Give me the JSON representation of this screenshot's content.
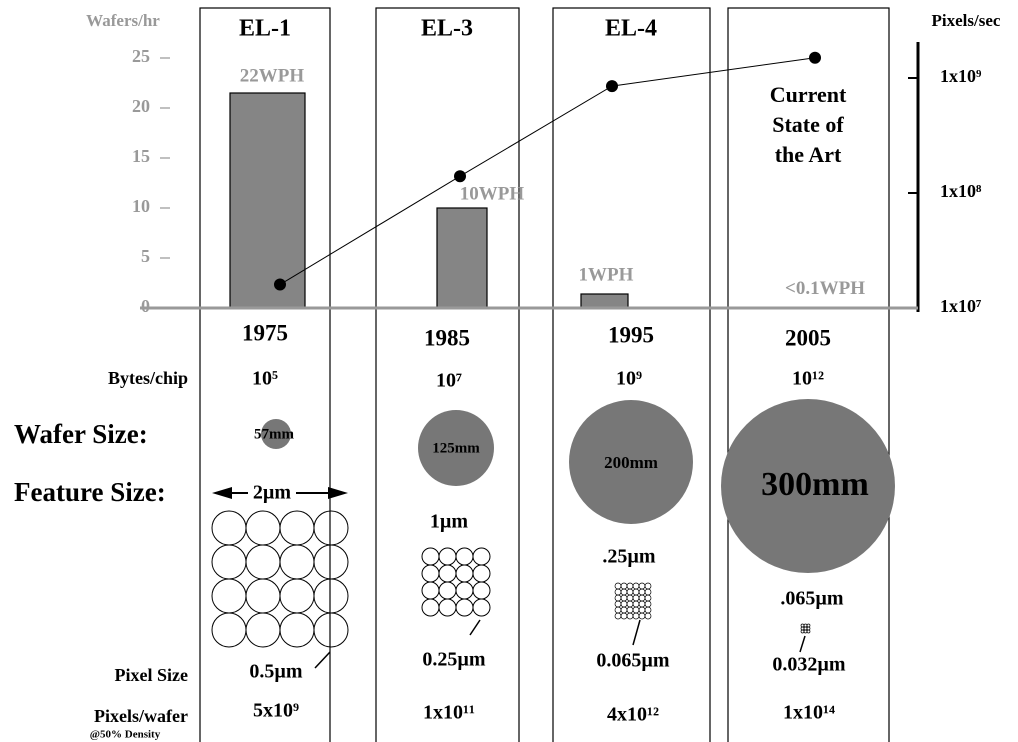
{
  "chart_data": {
    "type": "bar",
    "column_titles": [
      "EL-1",
      "EL-3",
      "EL-4",
      null
    ],
    "annotation_lines": [
      "Current",
      "State of",
      "the Art"
    ],
    "categories": [
      "1975",
      "1985",
      "1995",
      "2005"
    ],
    "ylabel": "Wafers/hr",
    "y2label": "Pixels/sec",
    "ylim": [
      0,
      25
    ],
    "yticks": [
      0,
      5,
      10,
      15,
      20,
      25
    ],
    "y2lim": [
      10000000,
      2000000000
    ],
    "y2scale": "log",
    "y2ticks": [
      {
        "value": 10000000,
        "label": "1x10⁷"
      },
      {
        "value": 100000000,
        "label": "1x10⁸"
      },
      {
        "value": 1000000000,
        "label": "1x10⁹"
      }
    ],
    "series": [
      {
        "type": "bar",
        "color": "#858585",
        "values": [
          21.5,
          10,
          1.4,
          0.05
        ],
        "value_labels": [
          "22WPH",
          "10WPH",
          "1WPH",
          "<0.1WPH"
        ]
      },
      {
        "type": "line",
        "axis": "y2",
        "color": "#000000",
        "values": [
          16000000,
          140000000,
          850000000,
          1500000000
        ]
      }
    ]
  },
  "rows": {
    "bytes_per_chip": {
      "label": "Bytes/chip",
      "values": [
        "10⁵",
        "10⁷",
        "10⁹",
        "10¹²"
      ]
    },
    "wafer_size": {
      "label": "Wafer Size:",
      "values": [
        "57mm",
        "125mm",
        "200mm",
        "300mm"
      ]
    },
    "feature_size": {
      "label": "Feature Size:",
      "values": [
        "2µm",
        "1µm",
        ".25µm",
        ".065µm"
      ]
    },
    "pixel_size": {
      "label": "Pixel Size",
      "values": [
        "0.5µm",
        "0.25µm",
        "0.065µm",
        "0.032µm"
      ]
    },
    "pixels_per_wafer": {
      "label": "Pixels/wafer",
      "note": "@50% Density",
      "values": [
        "5x10⁹",
        "1x10¹¹",
        "4x10¹²",
        "1x10¹⁴"
      ]
    }
  }
}
